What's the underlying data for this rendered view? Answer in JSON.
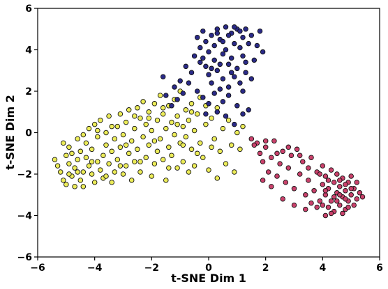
{
  "chart_data": {
    "type": "scatter",
    "title": "",
    "xlabel": "t-SNE Dim 1",
    "ylabel": "t-SNE Dim 2",
    "xlim": [
      -6,
      6
    ],
    "ylim": [
      -6,
      6
    ],
    "xticks": [
      -6,
      -4,
      -2,
      0,
      2,
      4,
      6
    ],
    "yticks": [
      -6,
      -4,
      -2,
      0,
      2,
      4,
      6
    ],
    "xtick_labels": [
      "−6",
      "−4",
      "−2",
      "0",
      "2",
      "4",
      "6"
    ],
    "ytick_labels": [
      "−6",
      "−4",
      "−2",
      "0",
      "2",
      "4",
      "6"
    ],
    "grid": false,
    "legend": "none",
    "series": [
      {
        "color": "#ecec58",
        "points": [
          [
            -5.4,
            -1.3
          ],
          [
            -5.3,
            -1.6
          ],
          [
            -5.2,
            -1.9
          ],
          [
            -5.1,
            -2.3
          ],
          [
            -5.0,
            -1.1
          ],
          [
            -5.0,
            -2.5
          ],
          [
            -4.9,
            -1.5
          ],
          [
            -4.9,
            -0.7
          ],
          [
            -4.8,
            -2.1
          ],
          [
            -4.8,
            -1.0
          ],
          [
            -4.7,
            -2.6
          ],
          [
            -4.7,
            -1.7
          ],
          [
            -4.6,
            -0.3
          ],
          [
            -4.6,
            -1.3
          ],
          [
            -4.5,
            -2.3
          ],
          [
            -4.5,
            -0.9
          ],
          [
            -4.4,
            -1.9
          ],
          [
            -4.4,
            -2.6
          ],
          [
            -4.3,
            -0.5
          ],
          [
            -4.3,
            -1.2
          ],
          [
            -4.2,
            -1.6
          ],
          [
            -4.2,
            0.2
          ],
          [
            -4.1,
            -2.0
          ],
          [
            -4.1,
            -0.8
          ],
          [
            -4.0,
            -2.4
          ],
          [
            -4.0,
            0.4
          ],
          [
            -3.9,
            -1.4
          ],
          [
            -3.9,
            -0.2
          ],
          [
            -3.8,
            -1.8
          ],
          [
            -3.8,
            0.6
          ],
          [
            -3.7,
            -1.1
          ],
          [
            -3.7,
            -2.2
          ],
          [
            -3.6,
            0.0
          ],
          [
            -3.6,
            -0.6
          ],
          [
            -3.5,
            -1.5
          ],
          [
            -3.5,
            0.8
          ],
          [
            -3.4,
            -2.4
          ],
          [
            -3.4,
            -0.9
          ],
          [
            -3.3,
            -0.3
          ],
          [
            -3.3,
            -1.9
          ],
          [
            -3.2,
            0.3
          ],
          [
            -3.2,
            -1.3
          ],
          [
            -3.1,
            0.9
          ],
          [
            -3.1,
            -0.7
          ],
          [
            -3.0,
            -2.0
          ],
          [
            -3.0,
            -0.1
          ],
          [
            -2.9,
            -1.6
          ],
          [
            -2.9,
            0.5
          ],
          [
            -2.8,
            -1.0
          ],
          [
            -2.8,
            1.1
          ],
          [
            -2.7,
            -0.4
          ],
          [
            -2.7,
            -2.3
          ],
          [
            -2.6,
            0.2
          ],
          [
            -2.6,
            -1.4
          ],
          [
            -2.5,
            1.2
          ],
          [
            -2.5,
            -0.8
          ],
          [
            -2.4,
            -1.9
          ],
          [
            -2.4,
            0.7
          ],
          [
            -2.3,
            -0.2
          ],
          [
            -2.3,
            1.5
          ],
          [
            -2.2,
            -1.2
          ],
          [
            -2.2,
            0.4
          ],
          [
            -2.1,
            1.0
          ],
          [
            -2.1,
            -0.6
          ],
          [
            -2.0,
            -2.1
          ],
          [
            -2.0,
            0.1
          ],
          [
            -1.9,
            -1.5
          ],
          [
            -1.9,
            1.4
          ],
          [
            -1.8,
            -0.9
          ],
          [
            -1.8,
            0.6
          ],
          [
            -1.7,
            -0.3
          ],
          [
            -1.7,
            1.8
          ],
          [
            -1.6,
            -1.3
          ],
          [
            -1.6,
            0.9
          ],
          [
            -1.5,
            0.2
          ],
          [
            -1.5,
            -2.3
          ],
          [
            -1.4,
            -0.7
          ],
          [
            -1.4,
            1.3
          ],
          [
            -1.3,
            0.5
          ],
          [
            -1.3,
            -1.1
          ],
          [
            -1.2,
            -0.1
          ],
          [
            -1.2,
            1.6
          ],
          [
            -1.1,
            -1.7
          ],
          [
            -1.1,
            0.8
          ],
          [
            -1.0,
            -0.5
          ],
          [
            -1.0,
            2.0
          ],
          [
            -0.9,
            0.3
          ],
          [
            -0.9,
            -1.4
          ],
          [
            -0.8,
            1.1
          ],
          [
            -0.8,
            -0.2
          ],
          [
            -0.7,
            -1.9
          ],
          [
            -0.7,
            0.6
          ],
          [
            -0.6,
            1.4
          ],
          [
            -0.6,
            -0.8
          ],
          [
            -0.5,
            0.1
          ],
          [
            -0.5,
            -1.6
          ],
          [
            -0.4,
            0.9
          ],
          [
            -0.3,
            -0.5
          ],
          [
            -0.3,
            1.7
          ],
          [
            -0.2,
            -1.2
          ],
          [
            -0.1,
            0.4
          ],
          [
            0.0,
            -1.8
          ],
          [
            0.1,
            0.7
          ],
          [
            0.2,
            -0.3
          ],
          [
            0.3,
            -2.2
          ],
          [
            0.3,
            1.2
          ],
          [
            0.4,
            -0.9
          ],
          [
            0.5,
            0.2
          ],
          [
            0.6,
            -1.5
          ],
          [
            0.7,
            0.6
          ],
          [
            0.8,
            -0.6
          ],
          [
            0.9,
            -1.9
          ],
          [
            1.0,
            0.0
          ],
          [
            1.1,
            -0.8
          ],
          [
            1.2,
            0.3
          ],
          [
            -5.1,
            -0.5
          ],
          [
            -4.9,
            -2.0
          ],
          [
            -4.6,
            -1.9
          ],
          [
            -4.4,
            -0.1
          ],
          [
            -4.1,
            -1.4
          ],
          [
            -3.9,
            0.1
          ],
          [
            -3.6,
            -2.1
          ],
          [
            -3.4,
            0.3
          ],
          [
            -3.1,
            -1.6
          ],
          [
            -2.9,
            -0.6
          ],
          [
            -2.6,
            0.8
          ],
          [
            -2.4,
            -1.4
          ],
          [
            -2.1,
            0.7
          ],
          [
            -1.9,
            -0.4
          ],
          [
            -1.6,
            1.2
          ],
          [
            -1.4,
            -1.7
          ],
          [
            -1.1,
            0.4
          ],
          [
            -0.9,
            -0.6
          ],
          [
            -0.6,
            1.0
          ],
          [
            -0.4,
            -1.0
          ],
          [
            -0.1,
            1.3
          ],
          [
            0.1,
            -0.7
          ]
        ]
      },
      {
        "color": "#2a2a87",
        "points": [
          [
            -0.4,
            4.6
          ],
          [
            -0.3,
            4.1
          ],
          [
            -0.2,
            3.6
          ],
          [
            -0.2,
            4.9
          ],
          [
            -0.1,
            3.2
          ],
          [
            -0.1,
            4.4
          ],
          [
            0.0,
            2.8
          ],
          [
            0.0,
            3.9
          ],
          [
            0.1,
            4.7
          ],
          [
            0.1,
            2.4
          ],
          [
            0.2,
            3.5
          ],
          [
            0.2,
            4.2
          ],
          [
            0.3,
            5.0
          ],
          [
            0.3,
            3.0
          ],
          [
            0.4,
            2.1
          ],
          [
            0.4,
            4.5
          ],
          [
            0.5,
            3.8
          ],
          [
            0.5,
            2.6
          ],
          [
            0.6,
            5.1
          ],
          [
            0.6,
            4.0
          ],
          [
            0.7,
            3.3
          ],
          [
            0.7,
            2.2
          ],
          [
            0.8,
            4.8
          ],
          [
            0.8,
            3.6
          ],
          [
            0.9,
            2.7
          ],
          [
            0.9,
            4.3
          ],
          [
            1.0,
            5.0
          ],
          [
            1.0,
            3.1
          ],
          [
            1.1,
            4.1
          ],
          [
            1.1,
            2.4
          ],
          [
            1.2,
            4.6
          ],
          [
            1.2,
            3.7
          ],
          [
            1.3,
            5.0
          ],
          [
            1.3,
            2.9
          ],
          [
            1.4,
            4.3
          ],
          [
            1.5,
            4.7
          ],
          [
            1.6,
            3.5
          ],
          [
            1.7,
            4.2
          ],
          [
            1.8,
            4.9
          ],
          [
            1.9,
            3.9
          ],
          [
            -0.5,
            3.7
          ],
          [
            -0.6,
            2.9
          ],
          [
            -0.7,
            2.4
          ],
          [
            -0.8,
            3.2
          ],
          [
            -0.9,
            1.9
          ],
          [
            -1.0,
            2.5
          ],
          [
            -1.1,
            1.6
          ],
          [
            -1.2,
            2.2
          ],
          [
            -1.3,
            1.3
          ],
          [
            -1.5,
            1.8
          ],
          [
            -1.6,
            2.7
          ],
          [
            -0.4,
            2.0
          ],
          [
            -0.2,
            1.7
          ],
          [
            0.0,
            1.4
          ],
          [
            0.2,
            1.9
          ],
          [
            0.5,
            1.5
          ],
          [
            0.7,
            1.8
          ],
          [
            1.0,
            1.3
          ],
          [
            1.2,
            2.0
          ],
          [
            0.3,
            4.8
          ],
          [
            0.5,
            4.4
          ],
          [
            0.7,
            4.7
          ],
          [
            0.9,
            5.1
          ],
          [
            1.1,
            4.9
          ],
          [
            -0.3,
            3.4
          ],
          [
            0.1,
            3.1
          ],
          [
            0.4,
            3.3
          ],
          [
            0.8,
            2.9
          ],
          [
            1.3,
            3.4
          ],
          [
            1.5,
            2.6
          ],
          [
            0.6,
            0.8
          ],
          [
            0.9,
            0.4
          ],
          [
            1.2,
            0.9
          ],
          [
            1.4,
            1.1
          ],
          [
            -0.1,
            0.9
          ],
          [
            0.3,
            1.0
          ]
        ]
      },
      {
        "color": "#c9416b",
        "points": [
          [
            1.5,
            -0.3
          ],
          [
            1.7,
            -0.5
          ],
          [
            1.8,
            -1.0
          ],
          [
            1.9,
            -1.4
          ],
          [
            2.0,
            -0.7
          ],
          [
            2.1,
            -1.9
          ],
          [
            2.2,
            -1.2
          ],
          [
            2.3,
            -0.4
          ],
          [
            2.4,
            -2.1
          ],
          [
            2.5,
            -1.5
          ],
          [
            2.6,
            -0.9
          ],
          [
            2.7,
            -2.4
          ],
          [
            2.8,
            -1.7
          ],
          [
            2.9,
            -1.1
          ],
          [
            3.0,
            -2.7
          ],
          [
            3.1,
            -0.8
          ],
          [
            3.2,
            -2.0
          ],
          [
            3.3,
            -1.4
          ],
          [
            3.4,
            -3.0
          ],
          [
            3.5,
            -2.3
          ],
          [
            3.6,
            -1.2
          ],
          [
            3.7,
            -2.8
          ],
          [
            3.8,
            -1.9
          ],
          [
            3.9,
            -3.3
          ],
          [
            4.0,
            -2.5
          ],
          [
            4.0,
            -1.6
          ],
          [
            4.1,
            -3.0
          ],
          [
            4.1,
            -2.1
          ],
          [
            4.2,
            -3.6
          ],
          [
            4.2,
            -2.7
          ],
          [
            4.3,
            -1.8
          ],
          [
            4.3,
            -3.3
          ],
          [
            4.4,
            -2.4
          ],
          [
            4.4,
            -3.8
          ],
          [
            4.5,
            -2.9
          ],
          [
            4.5,
            -2.0
          ],
          [
            4.6,
            -3.5
          ],
          [
            4.6,
            -2.6
          ],
          [
            4.7,
            -3.1
          ],
          [
            4.7,
            -2.2
          ],
          [
            4.8,
            -3.7
          ],
          [
            4.8,
            -2.8
          ],
          [
            4.9,
            -3.3
          ],
          [
            4.9,
            -2.4
          ],
          [
            5.0,
            -3.0
          ],
          [
            5.0,
            -2.1
          ],
          [
            5.1,
            -3.5
          ],
          [
            5.1,
            -2.7
          ],
          [
            5.2,
            -3.2
          ],
          [
            5.2,
            -2.4
          ],
          [
            5.3,
            -2.9
          ],
          [
            5.4,
            -3.1
          ],
          [
            3.9,
            -2.0
          ],
          [
            4.0,
            -3.5
          ],
          [
            4.2,
            -2.3
          ],
          [
            4.3,
            -3.9
          ],
          [
            4.5,
            -3.3
          ],
          [
            4.6,
            -2.3
          ],
          [
            4.7,
            -3.9
          ],
          [
            4.8,
            -2.5
          ],
          [
            4.9,
            -3.6
          ],
          [
            5.0,
            -2.7
          ],
          [
            4.1,
            -2.8
          ],
          [
            4.4,
            -3.1
          ],
          [
            4.6,
            -3.0
          ],
          [
            4.8,
            -3.2
          ],
          [
            1.6,
            -0.6
          ],
          [
            2.0,
            -0.4
          ],
          [
            2.4,
            -1.0
          ],
          [
            2.8,
            -0.7
          ],
          [
            3.2,
            -1.1
          ],
          [
            3.5,
            -1.7
          ],
          [
            2.2,
            -2.6
          ],
          [
            2.6,
            -3.2
          ],
          [
            3.0,
            -3.5
          ],
          [
            3.4,
            -3.7
          ],
          [
            1.9,
            -2.3
          ],
          [
            3.6,
            -3.4
          ],
          [
            3.8,
            -3.6
          ],
          [
            4.1,
            -4.0
          ]
        ]
      }
    ]
  }
}
